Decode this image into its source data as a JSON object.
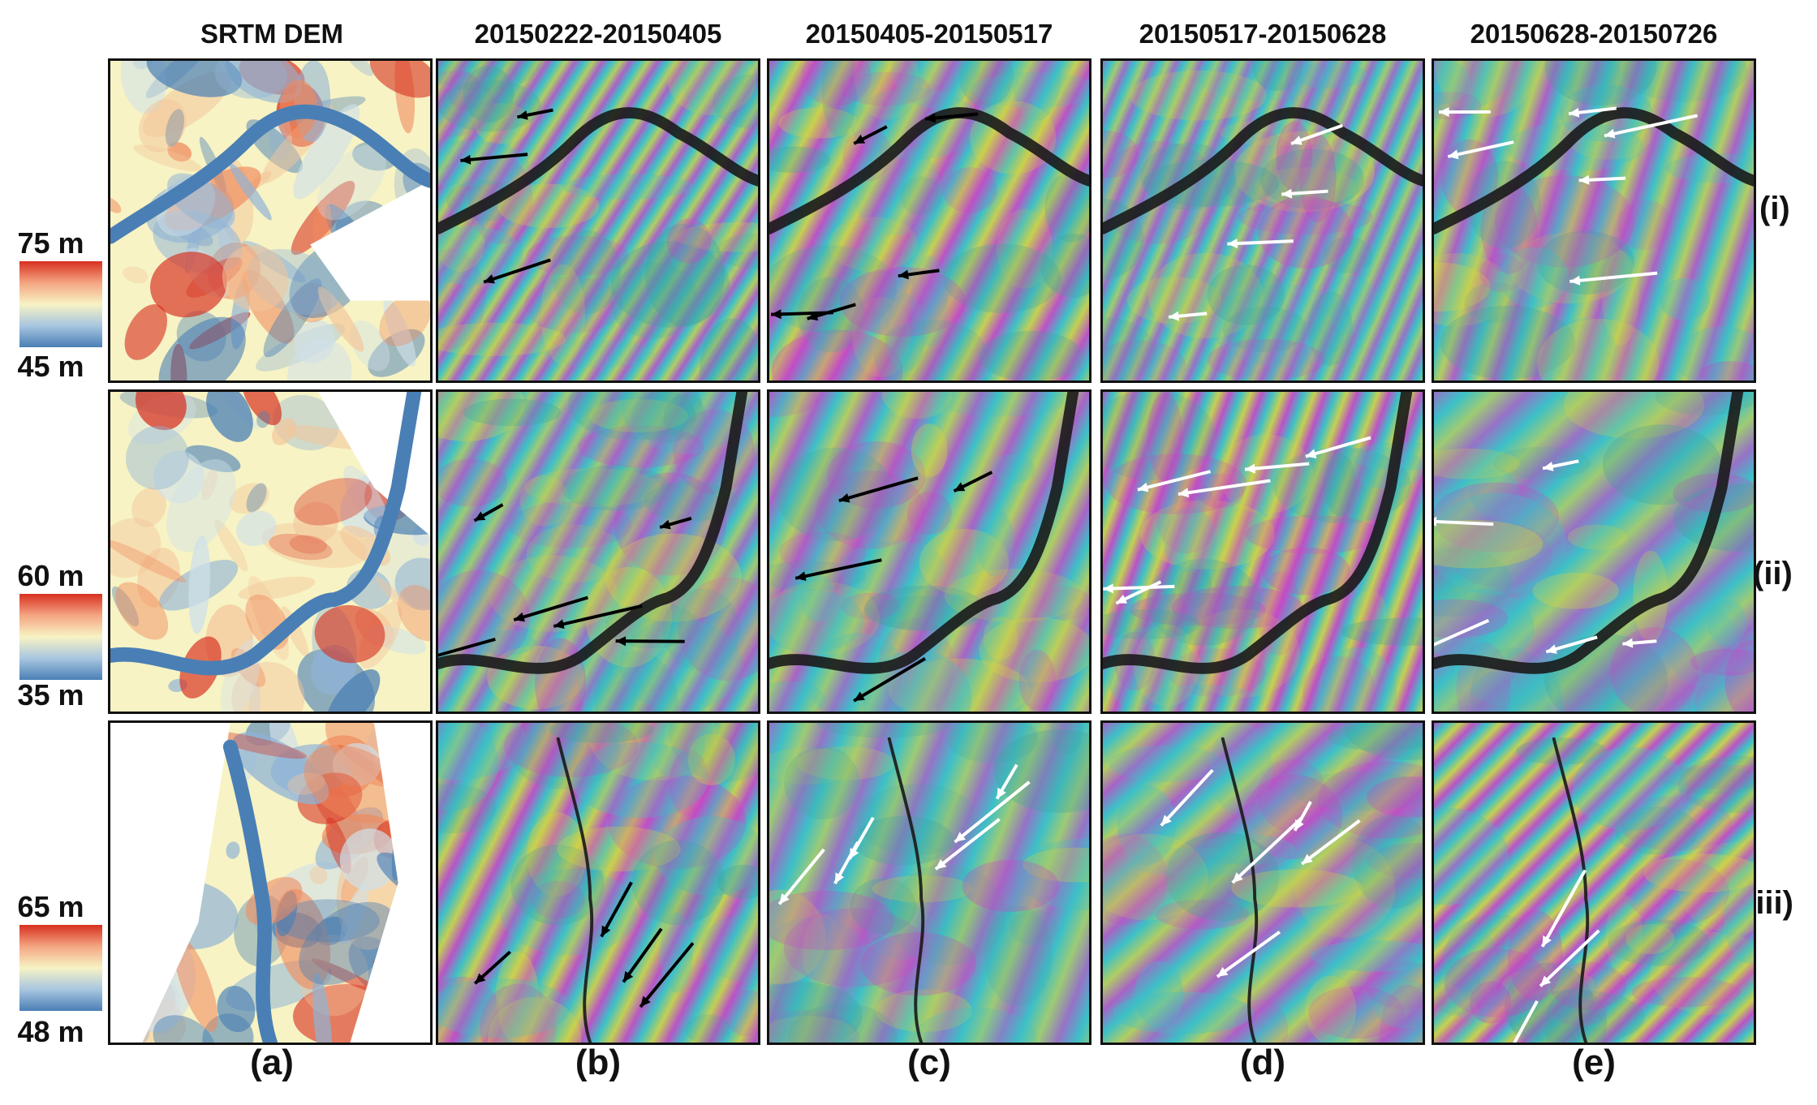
{
  "column_titles": [
    "SRTM DEM",
    "20150222-20150405",
    "20150405-20150517",
    "20150517-20150628",
    "20150628-20150726"
  ],
  "column_letters": [
    "(a)",
    "(b)",
    "(c)",
    "(d)",
    "(e)"
  ],
  "row_labels": [
    "(i)",
    "(ii)",
    "(iii)"
  ],
  "colorbars": [
    {
      "max": "75 m",
      "min": "45 m"
    },
    {
      "max": "60 m",
      "min": "35 m"
    },
    {
      "max": "65 m",
      "min": "48 m"
    }
  ],
  "colors": {
    "dem_high": "#d7301f",
    "dem_mid": "#f7f3c4",
    "dem_low": "#4a7fb5",
    "fringe_magenta": "#d43dc6",
    "fringe_cyan": "#3cc0c8",
    "fringe_yellow": "#e0d33a",
    "river": "#1a1a1a"
  },
  "panels": {
    "a": {
      "content": "dem-map"
    },
    "b": {
      "content": "interferogram"
    },
    "c": {
      "content": "interferogram"
    },
    "d": {
      "content": "interferogram"
    },
    "e": {
      "content": "interferogram"
    }
  }
}
